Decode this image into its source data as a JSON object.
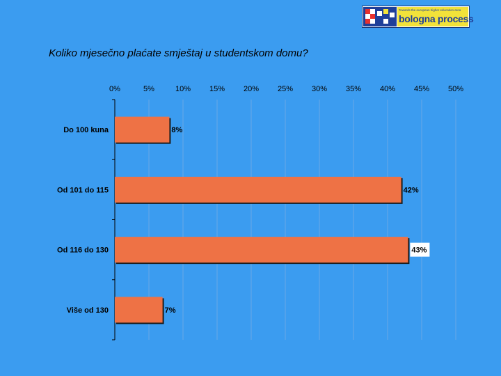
{
  "logo": {
    "small_text": "Towards the european higher education area",
    "text": "bologna process"
  },
  "question": "Koliko mjesečno plaćate smještaj u studentskom domu?",
  "colors": {
    "background": "#3b9cf0",
    "bar": "#ee7245",
    "gridline": "#6aa8e6"
  },
  "chart_data": {
    "type": "bar",
    "orientation": "horizontal",
    "title": "Koliko mjesečno plaćate smještaj u studentskom domu?",
    "categories": [
      "Do 100 kuna",
      "Od 101 do 115",
      "Od 116 do 130",
      "Više od 130"
    ],
    "values": [
      8,
      42,
      43,
      7
    ],
    "value_labels": [
      "8%",
      "42%",
      "43%",
      "7%"
    ],
    "xlim": [
      0,
      50
    ],
    "xticks": [
      0,
      5,
      10,
      15,
      20,
      25,
      30,
      35,
      40,
      45,
      50
    ],
    "xtick_labels": [
      "0%",
      "5%",
      "10%",
      "15%",
      "20%",
      "25%",
      "30%",
      "35%",
      "40%",
      "45%",
      "50%"
    ],
    "xaxis_position": "top",
    "grid": true,
    "legend": "none"
  }
}
